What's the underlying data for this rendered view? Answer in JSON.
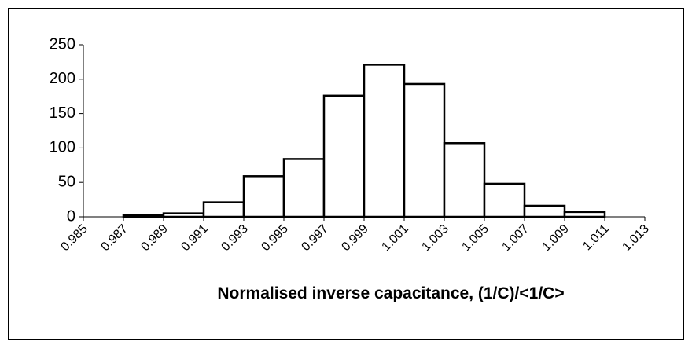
{
  "chart_data": {
    "type": "histogram",
    "x_label": "Normalised inverse capacitance, (1/C)/<1/C>",
    "bins": [
      0.987,
      0.989,
      0.991,
      0.993,
      0.995,
      0.997,
      0.999,
      1.001,
      1.003,
      1.005,
      1.007,
      1.009,
      1.011
    ],
    "counts": [
      2,
      5,
      21,
      59,
      84,
      176,
      221,
      193,
      107,
      48,
      16,
      7
    ],
    "color": "#ffffff",
    "edge_color": "#000000",
    "xlim": [
      0.985,
      1.013
    ],
    "xticks": [
      0.985,
      0.987,
      0.989,
      0.991,
      0.993,
      0.995,
      0.997,
      0.999,
      1.001,
      1.003,
      1.005,
      1.007,
      1.009,
      1.011,
      1.013
    ],
    "ylim": [
      0,
      250
    ],
    "yticks": [
      0,
      50,
      100,
      150,
      200,
      250
    ],
    "grid": false
  }
}
